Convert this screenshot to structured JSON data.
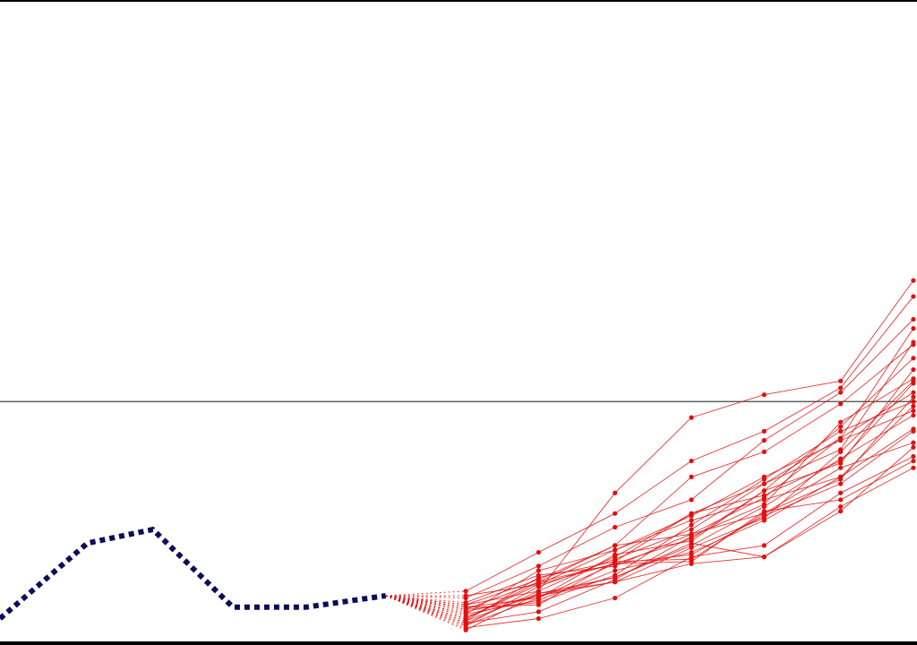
{
  "colors": {
    "history": "#0b0d5a",
    "forecast": "#e01010",
    "reference": "#444444",
    "background": "#ffffff",
    "frame": "#000000"
  },
  "chart_data": {
    "type": "line",
    "title": "",
    "xlabel": "",
    "ylabel": "",
    "grid": false,
    "legend": "none",
    "xlim": [
      0,
      12.6
    ],
    "ylim": [
      -10.5,
      17.5
    ],
    "reference_line": {
      "y": 0
    },
    "history": {
      "style": "dotted",
      "x": [
        0,
        1.2,
        2.1,
        3.2,
        4.2,
        5.3
      ],
      "y": [
        -9.5,
        -6.2,
        -5.6,
        -9.0,
        -9.0,
        -8.5
      ]
    },
    "forecast": {
      "style": "solid-with-markers",
      "origin": {
        "x": 5.3,
        "y": -8.5
      },
      "x": [
        6.4,
        7.4,
        8.45,
        9.5,
        10.5,
        11.55,
        12.55
      ],
      "paths": [
        [
          -9.6,
          -8.4,
          -7.7,
          -6.3,
          -4.6,
          -2.5,
          -0.6
        ],
        [
          -9.3,
          -8.7,
          -7.4,
          -6.6,
          -5.2,
          -3.3,
          -1.2
        ],
        [
          -9.8,
          -8.1,
          -6.9,
          -5.6,
          -3.6,
          -1.6,
          0.4
        ],
        [
          -9.0,
          -8.9,
          -7.0,
          -6.9,
          -4.9,
          -2.9,
          -1.8
        ],
        [
          -10.0,
          -8.4,
          -7.9,
          -7.1,
          -6.8,
          -4.8,
          -2.0
        ],
        [
          -9.5,
          -7.9,
          -7.1,
          -6.0,
          -3.9,
          -1.1,
          1.9
        ],
        [
          -8.8,
          -7.6,
          -7.2,
          -5.8,
          -4.9,
          -3.4,
          0.2
        ],
        [
          -9.7,
          -8.3,
          -6.8,
          -4.9,
          -3.6,
          -2.1,
          2.6
        ],
        [
          -9.2,
          -8.5,
          -7.9,
          -6.4,
          -5.1,
          -2.2,
          0.9
        ],
        [
          -8.3,
          -6.6,
          -4.9,
          -2.6,
          -1.3,
          0.6,
          4.6
        ],
        [
          -8.9,
          -7.8,
          -6.3,
          -5.8,
          -4.2,
          -1.6,
          3.2
        ],
        [
          -9.9,
          -9.5,
          -8.6,
          -6.8,
          -6.3,
          -4.0,
          -2.4
        ],
        [
          -9.1,
          -8.8,
          -7.6,
          -5.4,
          -3.4,
          -1.3,
          0.0
        ],
        [
          -9.4,
          -8.5,
          -7.7,
          -6.2,
          -6.8,
          -4.6,
          -2.9
        ],
        [
          -8.9,
          -8.3,
          -4.0,
          -0.7,
          0.3,
          0.9,
          5.3
        ],
        [
          -9.3,
          -7.4,
          -6.5,
          -5.2,
          -4.3,
          -3.3,
          -0.2
        ],
        [
          -9.8,
          -8.6,
          -7.1,
          -6.7,
          -5.0,
          -3.6,
          -1.3
        ],
        [
          -9.6,
          -7.7,
          -7.0,
          -4.9,
          -4.1,
          -2.6,
          0.8
        ],
        [
          -8.6,
          -7.2,
          -5.5,
          -4.3,
          -1.7,
          0.4,
          3.6
        ],
        [
          -9.5,
          -8.0,
          -6.5,
          -5.0,
          -3.3,
          -1.7,
          -0.4
        ],
        [
          -8.5,
          -8.0,
          -7.1,
          -7.0,
          -4.8,
          -4.3,
          -2.6
        ],
        [
          -9.0,
          -8.6,
          -6.7,
          -6.1,
          -3.9,
          -2.7,
          1.4
        ],
        [
          -9.7,
          -9.2,
          -7.8,
          -5.9,
          -4.5,
          -0.9,
          1.0
        ],
        [
          -9.1,
          -7.9,
          -6.3,
          -3.3,
          -2.2,
          -0.1,
          2.5
        ]
      ]
    }
  }
}
